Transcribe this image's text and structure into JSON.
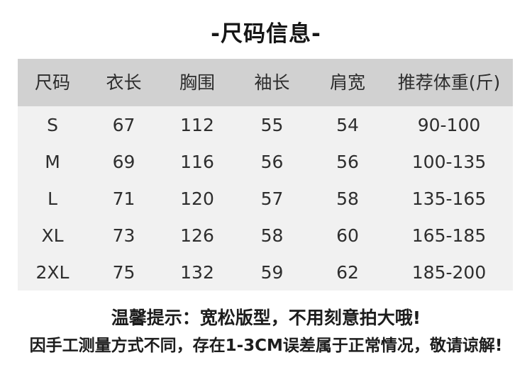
{
  "title": "-尺码信息-",
  "table": {
    "headers": [
      "尺码",
      "衣长",
      "胸围",
      "袖长",
      "肩宽",
      "推荐体重(斤)"
    ],
    "rows": [
      [
        "S",
        "67",
        "112",
        "55",
        "54",
        "90-100"
      ],
      [
        "M",
        "69",
        "116",
        "56",
        "56",
        "100-135"
      ],
      [
        "L",
        "71",
        "120",
        "57",
        "58",
        "135-165"
      ],
      [
        "XL",
        "73",
        "126",
        "58",
        "60",
        "165-185"
      ],
      [
        "2XL",
        "75",
        "132",
        "59",
        "62",
        "185-200"
      ]
    ]
  },
  "notes": {
    "tip": "温馨提示：宽松版型，不用刻意拍大哦!",
    "disclaimer": "因手工测量方式不同，存在1-3CM误差属于正常情况，敬请谅解!"
  },
  "colors": {
    "page_bg": "#ffffff",
    "header_bg": "#d1d1d1",
    "body_bg": "#f1f1f1",
    "title_text": "#161616",
    "table_text": "#2e2e2e",
    "note_text": "#1d1d1d"
  }
}
